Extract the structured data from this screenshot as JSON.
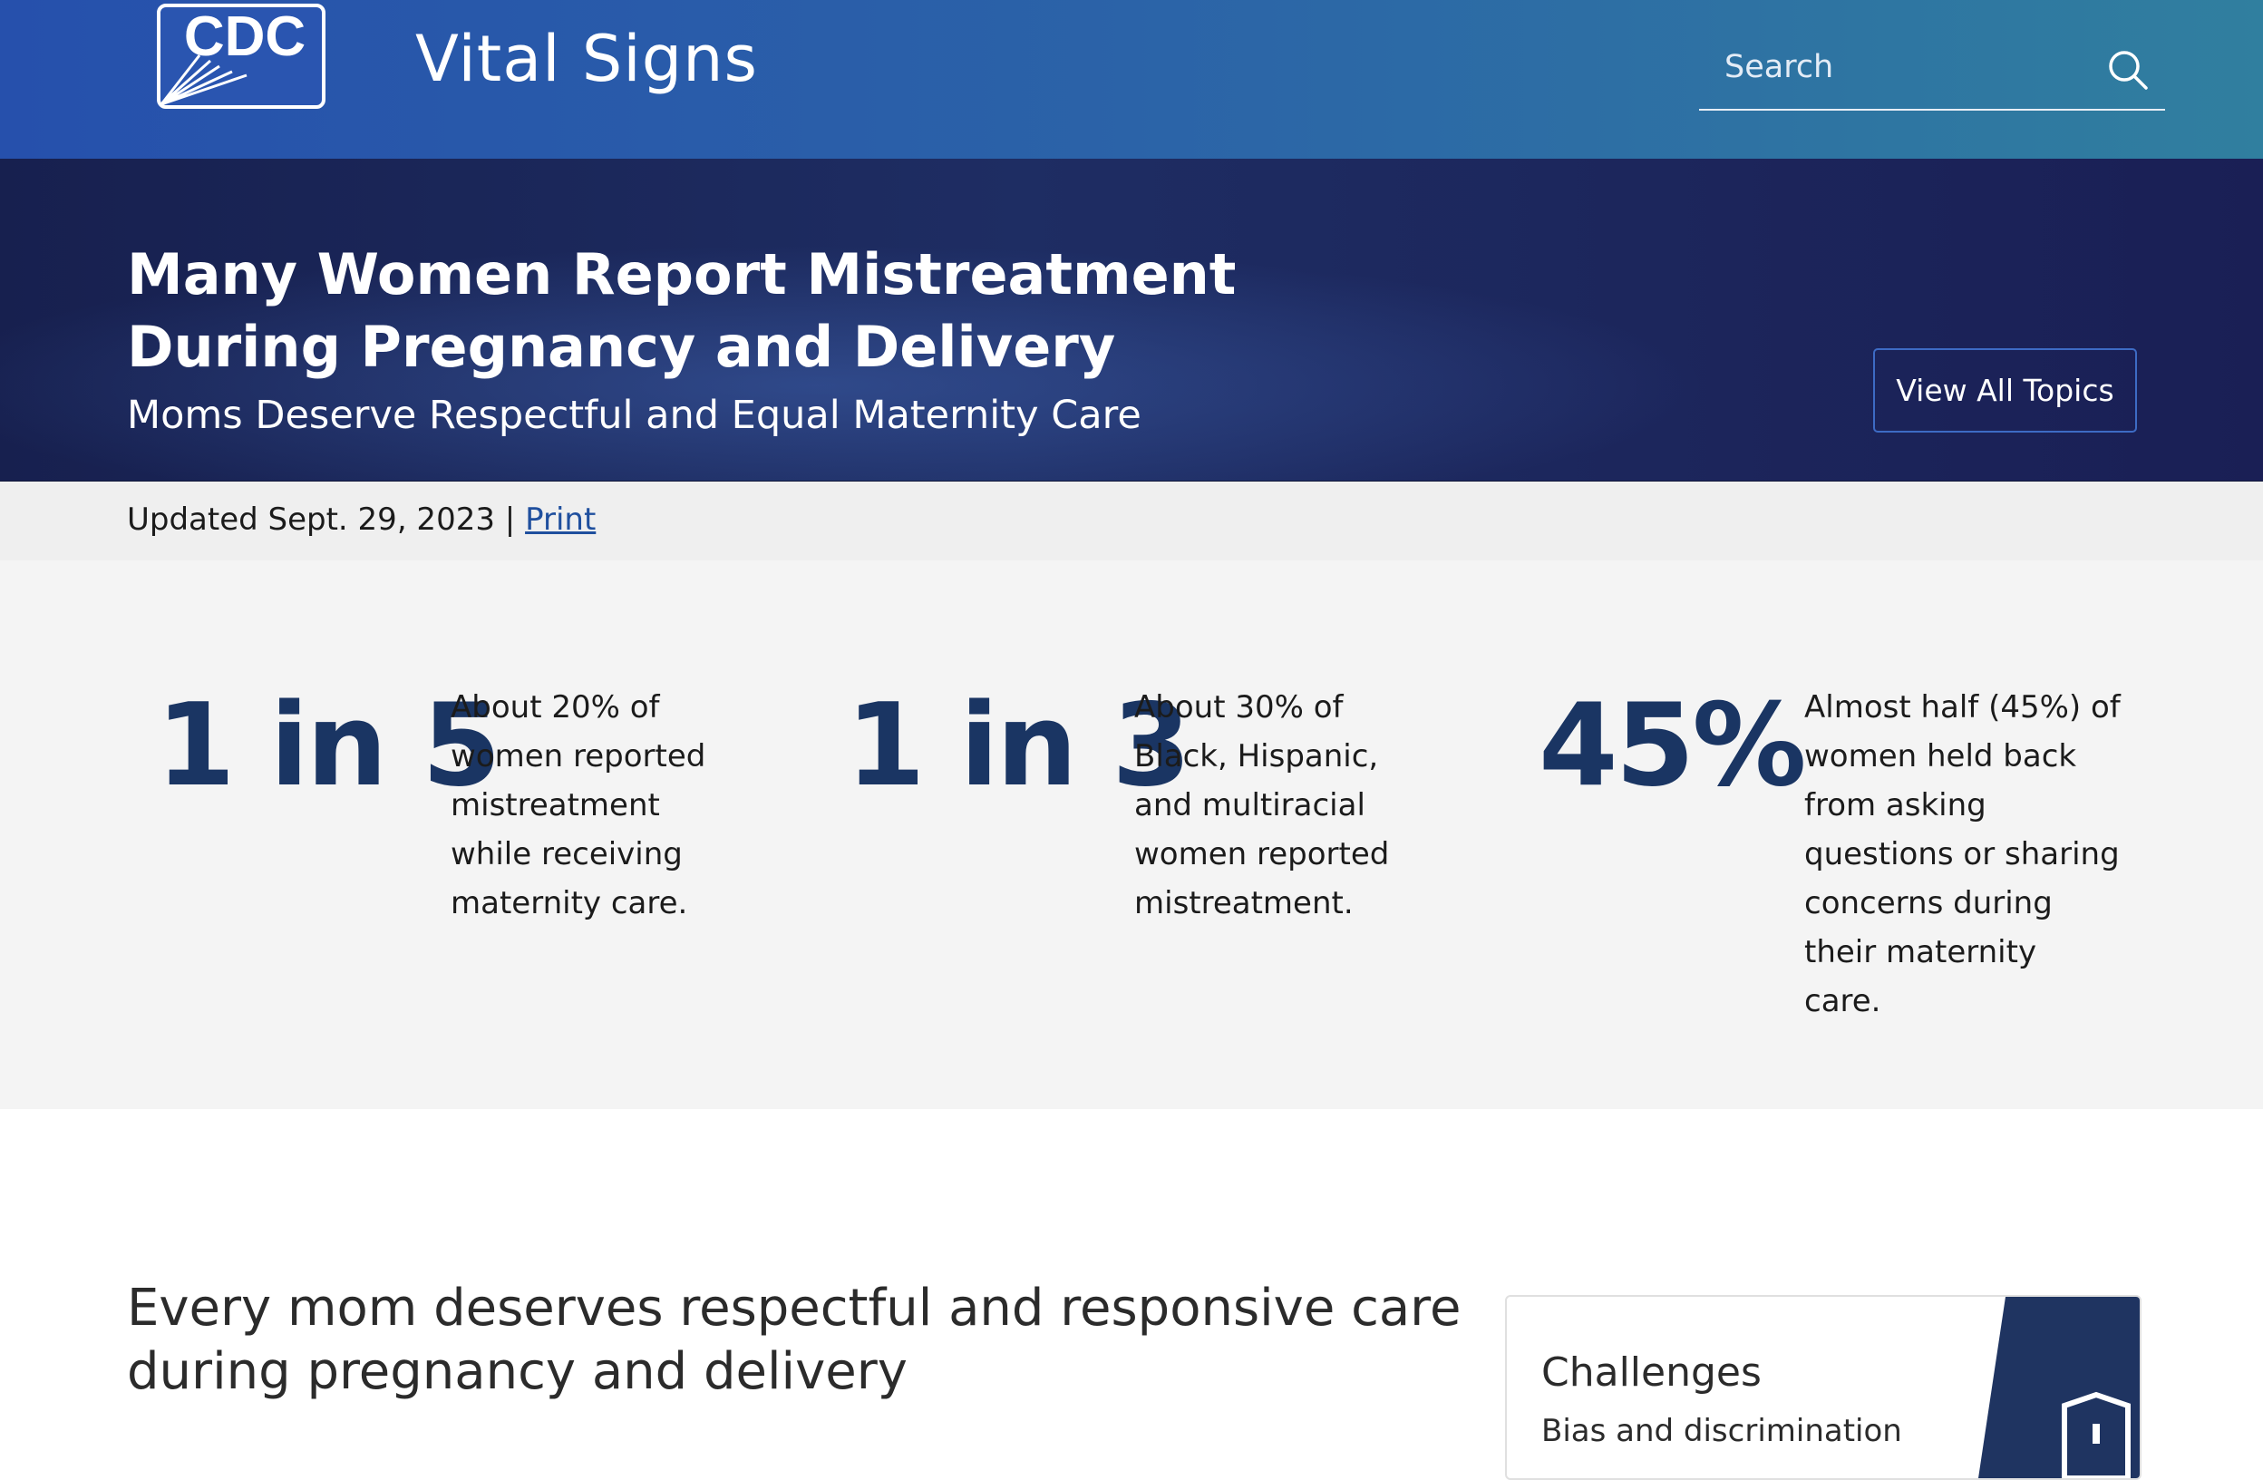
{
  "header": {
    "logo": "CDC",
    "site_name": "Vital Signs",
    "search_placeholder": "Search"
  },
  "hero": {
    "title": "Many Women Report Mistreatment During Pregnancy and Delivery",
    "subtitle": "Moms Deserve Respectful and Equal Maternity Care",
    "button": "View All Topics"
  },
  "meta": {
    "updated": "Updated Sept. 29, 2023",
    "separator": "|",
    "print": "Print"
  },
  "stats": [
    {
      "figure": "1 in 5",
      "text": "About 20% of women reported mistreatment while receiving maternity care."
    },
    {
      "figure": "1 in 3",
      "text": "About 30% of Black, Hispanic, and multiracial women reported mistreatment."
    },
    {
      "figure": "45%",
      "text": "Almost half (45%) of women held back from asking questions or sharing concerns during their maternity care."
    }
  ],
  "section": {
    "heading": "Every mom deserves respectful and responsive care during pregnancy and delivery"
  },
  "card": {
    "title": "Challenges",
    "text": "Bias and discrimination"
  }
}
